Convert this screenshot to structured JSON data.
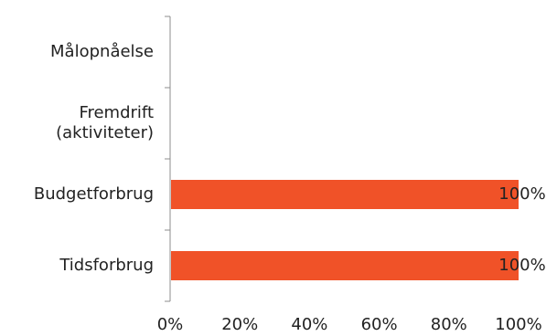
{
  "chart_data": {
    "type": "bar",
    "orientation": "horizontal",
    "categories": [
      "Målopnåelse",
      "Fremdrift (aktiviteter)",
      "Budgetforbrug",
      "Tidsforbrug"
    ],
    "category_lines": [
      [
        "Målopnåelse"
      ],
      [
        "Fremdrift",
        "(aktiviteter)"
      ],
      [
        "Budgetforbrug"
      ],
      [
        "Tidsforbrug"
      ]
    ],
    "values": [
      null,
      null,
      100,
      100
    ],
    "data_labels": [
      "",
      "",
      "100%",
      "100%"
    ],
    "xlim": [
      0,
      100
    ],
    "x_ticks": [
      0,
      20,
      40,
      60,
      80,
      100
    ],
    "x_tick_labels": [
      "0%",
      "20%",
      "40%",
      "60%",
      "80%",
      "100%"
    ],
    "grid": false,
    "legend": "none",
    "colors": {
      "bar": "#f05228",
      "axis": "#8c8c8c",
      "text": "#222222"
    }
  }
}
